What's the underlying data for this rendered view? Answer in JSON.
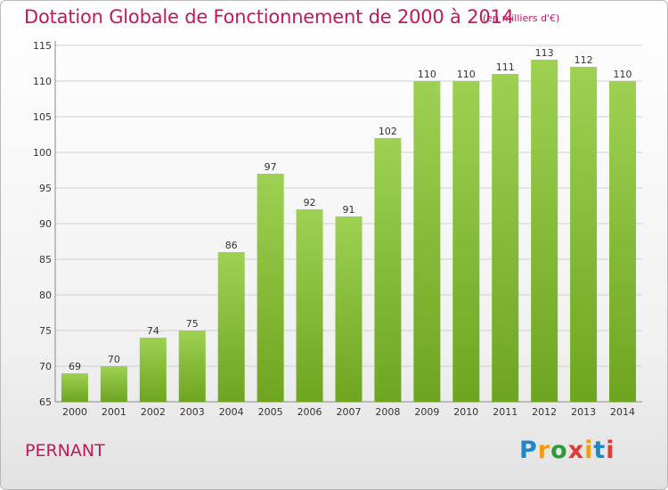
{
  "title": "Dotation Globale de Fonctionnement de 2000 à 2014",
  "subtitle": "(en milliers d'€)",
  "commune": "PERNANT",
  "logo": {
    "letters": [
      "P",
      "r",
      "o",
      "x",
      "i",
      "t",
      "i"
    ],
    "colors": [
      "#1e88c8",
      "#f39c12",
      "#2e9a3a",
      "#e53935",
      "#f39c12",
      "#1e88c8",
      "#e53935"
    ]
  },
  "colors": {
    "bar_light": "#9ed153",
    "bar_dark": "#6ea520",
    "title": "#c2185b"
  },
  "chart_data": {
    "type": "bar",
    "categories": [
      "2000",
      "2001",
      "2002",
      "2003",
      "2004",
      "2005",
      "2006",
      "2007",
      "2008",
      "2009",
      "2010",
      "2011",
      "2012",
      "2013",
      "2014"
    ],
    "values": [
      69,
      70,
      74,
      75,
      86,
      97,
      92,
      91,
      102,
      110,
      110,
      111,
      113,
      112,
      110
    ],
    "ylim": [
      65,
      115
    ],
    "yticks": [
      65,
      70,
      75,
      80,
      85,
      90,
      95,
      100,
      105,
      110,
      115
    ],
    "grid": true
  }
}
